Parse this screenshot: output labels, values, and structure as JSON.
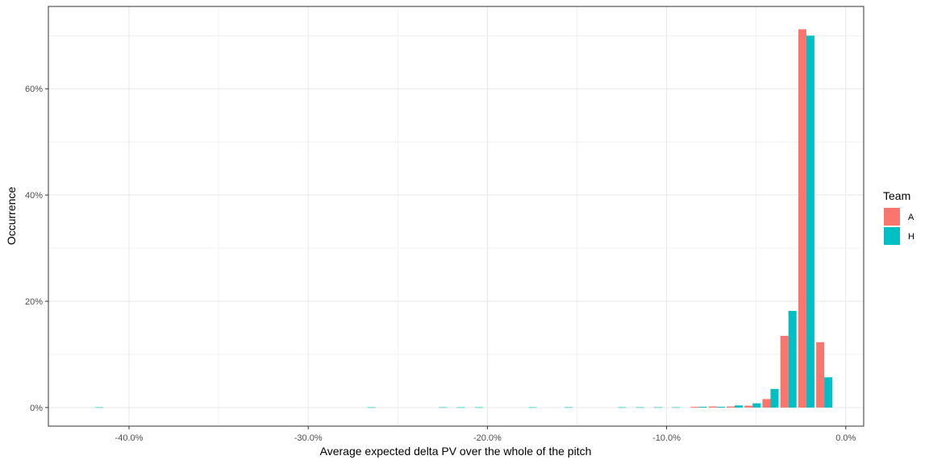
{
  "chart_data": {
    "type": "bar",
    "xlabel": "Average expected delta PV over the whole of the pitch",
    "ylabel": "Occurrence",
    "x_ticks": [
      "-40.0%",
      "-30.0%",
      "-20.0%",
      "-10.0%",
      "0.0%"
    ],
    "y_ticks": [
      "0%",
      "20%",
      "40%",
      "60%"
    ],
    "xlim": [
      -44.5,
      1.0
    ],
    "ylim": [
      -3.5,
      75.5
    ],
    "grid": true,
    "legend": {
      "title": "Team",
      "position": "right",
      "entries": [
        "A",
        "H"
      ]
    },
    "x": [
      -41.9,
      -26.7,
      -22.7,
      -21.7,
      -20.7,
      -17.7,
      -15.7,
      -12.7,
      -11.7,
      -10.7,
      -9.7,
      -8.2,
      -7.2,
      -6.2,
      -5.2,
      -4.2,
      -3.2,
      -2.2,
      -1.2
    ],
    "series": [
      {
        "name": "A",
        "color": "#F8766D",
        "values": [
          0,
          0,
          0,
          0,
          0,
          0,
          0,
          0,
          0,
          0,
          0,
          0.15,
          0.2,
          0.2,
          0.35,
          1.6,
          13.5,
          71.2,
          12.3
        ]
      },
      {
        "name": "H",
        "color": "#00BFC4",
        "values": [
          0.05,
          0.05,
          0.05,
          0.05,
          0.05,
          0.05,
          0.05,
          0.05,
          0.05,
          0.05,
          0.05,
          0.15,
          0.15,
          0.4,
          0.8,
          3.5,
          18.2,
          70.0,
          5.7
        ]
      }
    ]
  }
}
